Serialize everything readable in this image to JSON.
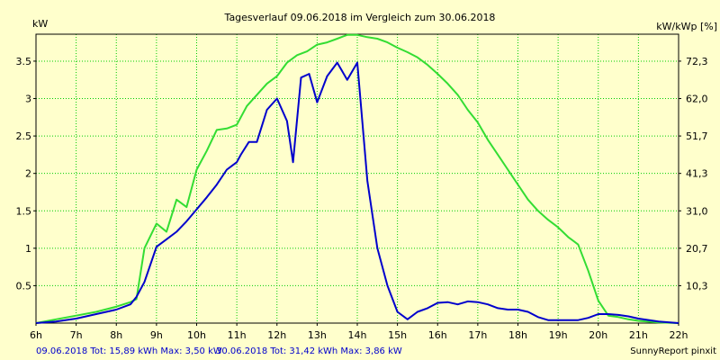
{
  "chart_data": {
    "type": "line",
    "title": "Tagesverlauf 09.06.2018 im Vergleich zum 30.06.2018",
    "ylabel_left": "kW",
    "ylabel_right": "kW/kWp [%]",
    "xlim": [
      6,
      22
    ],
    "ylim": [
      0,
      3.86
    ],
    "x_ticks": [
      6,
      7,
      8,
      9,
      10,
      11,
      12,
      13,
      14,
      15,
      16,
      17,
      18,
      19,
      20,
      21,
      22
    ],
    "x_tick_labels": [
      "6h",
      "7h",
      "8h",
      "9h",
      "10h",
      "11h",
      "12h",
      "13h",
      "14h",
      "15h",
      "16h",
      "17h",
      "18h",
      "19h",
      "20h",
      "21h",
      "22h"
    ],
    "y_ticks": [
      0.5,
      1,
      1.5,
      2,
      2.5,
      3,
      3.5
    ],
    "y_tick_labels": [
      "0.5",
      "1",
      "1.5",
      "2",
      "2.5",
      "3",
      "3.5"
    ],
    "right_ticks": [
      {
        "y": 0.5,
        "label": "10,3"
      },
      {
        "y": 1.0,
        "label": "20,7"
      },
      {
        "y": 1.5,
        "label": "31,0"
      },
      {
        "y": 2.0,
        "label": "41,3"
      },
      {
        "y": 2.5,
        "label": "51,7"
      },
      {
        "y": 3.0,
        "label": "62,0"
      },
      {
        "y": 3.5,
        "label": "72,3"
      }
    ],
    "grid": true,
    "series": [
      {
        "name": "09.06.2018",
        "color": "#0000cc",
        "x": [
          6.0,
          6.5,
          7.0,
          7.5,
          8.0,
          8.35,
          8.5,
          8.7,
          9.0,
          9.25,
          9.5,
          9.75,
          10.0,
          10.25,
          10.5,
          10.75,
          11.0,
          11.1,
          11.3,
          11.5,
          11.75,
          12.0,
          12.25,
          12.4,
          12.6,
          12.8,
          13.0,
          13.25,
          13.5,
          13.75,
          14.0,
          14.25,
          14.5,
          14.75,
          15.0,
          15.25,
          15.5,
          15.75,
          16.0,
          16.25,
          16.5,
          16.75,
          17.0,
          17.25,
          17.5,
          17.75,
          18.0,
          18.25,
          18.5,
          18.75,
          19.0,
          19.25,
          19.5,
          19.75,
          20.0,
          20.25,
          20.5,
          20.75,
          21.0,
          21.5,
          22.0
        ],
        "y": [
          0.0,
          0.02,
          0.06,
          0.12,
          0.18,
          0.25,
          0.35,
          0.55,
          1.02,
          1.12,
          1.22,
          1.36,
          1.52,
          1.68,
          1.85,
          2.05,
          2.15,
          2.25,
          2.42,
          2.42,
          2.85,
          3.0,
          2.7,
          2.15,
          3.28,
          3.33,
          2.95,
          3.3,
          3.48,
          3.25,
          3.48,
          1.9,
          1.0,
          0.5,
          0.15,
          0.05,
          0.15,
          0.2,
          0.27,
          0.28,
          0.25,
          0.29,
          0.28,
          0.25,
          0.2,
          0.18,
          0.18,
          0.15,
          0.08,
          0.04,
          0.04,
          0.04,
          0.04,
          0.07,
          0.12,
          0.12,
          0.11,
          0.09,
          0.06,
          0.02,
          0.0
        ]
      },
      {
        "name": "30.06.2018",
        "color": "#33dd33",
        "x": [
          6.0,
          6.5,
          7.0,
          7.5,
          8.0,
          8.35,
          8.5,
          8.7,
          9.0,
          9.25,
          9.5,
          9.75,
          10.0,
          10.25,
          10.5,
          10.75,
          11.0,
          11.25,
          11.5,
          11.75,
          12.0,
          12.25,
          12.5,
          12.75,
          13.0,
          13.25,
          13.5,
          13.75,
          14.0,
          14.25,
          14.5,
          14.75,
          15.0,
          15.25,
          15.5,
          15.75,
          16.0,
          16.25,
          16.5,
          16.75,
          17.0,
          17.25,
          17.5,
          17.75,
          18.0,
          18.25,
          18.5,
          18.75,
          19.0,
          19.25,
          19.5,
          19.75,
          20.0,
          20.25,
          20.5,
          20.75,
          21.0,
          21.5,
          22.0
        ],
        "y": [
          0.0,
          0.05,
          0.1,
          0.15,
          0.22,
          0.28,
          0.32,
          1.0,
          1.33,
          1.22,
          1.65,
          1.55,
          2.05,
          2.3,
          2.58,
          2.6,
          2.65,
          2.9,
          3.05,
          3.2,
          3.3,
          3.48,
          3.58,
          3.63,
          3.72,
          3.75,
          3.8,
          3.85,
          3.85,
          3.82,
          3.8,
          3.75,
          3.68,
          3.62,
          3.55,
          3.45,
          3.33,
          3.2,
          3.05,
          2.85,
          2.68,
          2.45,
          2.25,
          2.05,
          1.85,
          1.65,
          1.5,
          1.38,
          1.28,
          1.15,
          1.05,
          0.7,
          0.3,
          0.1,
          0.08,
          0.05,
          0.03,
          0.01,
          0.0
        ]
      }
    ]
  },
  "footer": {
    "series1": "09.06.2018 Tot: 15,89 kWh Max: 3,50 kW",
    "series2": "30.06.2018 Tot: 31,42 kWh Max: 3,86 kW",
    "credit": "SunnyReport pinxit"
  }
}
